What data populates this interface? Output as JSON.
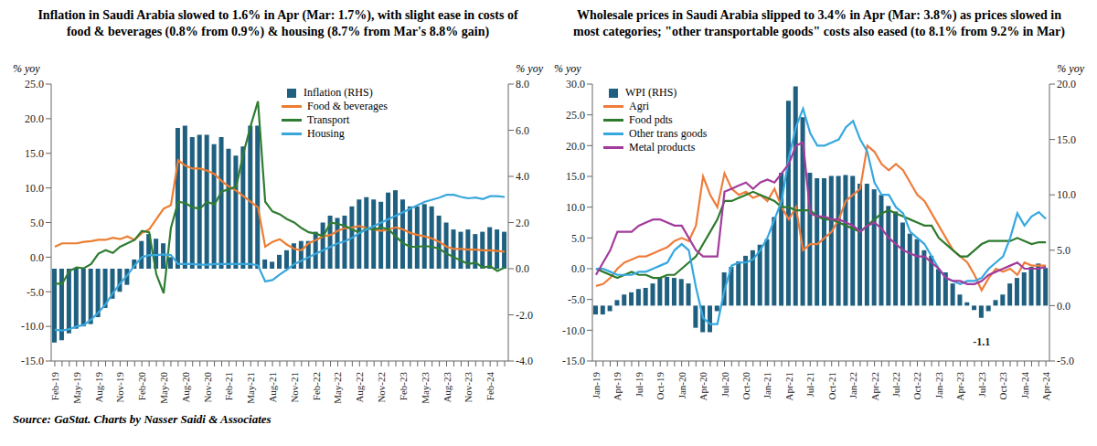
{
  "chart_data": [
    {
      "type": "line",
      "title": "Inflation in Saudi Arabia slowed to 1.6% in Apr (Mar: 1.7%), with slight ease in costs of food & beverages (0.8% from 0.9%) & housing (8.7% from Mar's 8.8% gain)",
      "y_label": "% yoy",
      "y2_label": "% yoy",
      "categories": [
        "Feb-19",
        null,
        null,
        "May-19",
        null,
        null,
        "Aug-19",
        null,
        null,
        "Nov-19",
        null,
        null,
        "Feb-20",
        null,
        null,
        "May-20",
        null,
        null,
        "Aug-20",
        null,
        null,
        "Nov-20",
        null,
        null,
        "Feb-21",
        null,
        null,
        "May-21",
        null,
        null,
        "Aug-21",
        null,
        null,
        "Nov-21",
        null,
        null,
        "Feb-22",
        null,
        null,
        "May-22",
        null,
        null,
        "Aug-22",
        null,
        null,
        "Nov-22",
        null,
        null,
        "Feb-23",
        null,
        null,
        "May-23",
        null,
        null,
        "Aug-23",
        null,
        null,
        "Nov-23",
        null,
        null,
        "Feb-24",
        null,
        null
      ],
      "series": [
        {
          "name": "Inflation (RHS)",
          "type": "bar",
          "axis": "y2",
          "color": "#1f5f80",
          "values": [
            -3.2,
            -3.1,
            -2.8,
            -2.6,
            -2.5,
            -2.4,
            -2.1,
            -1.7,
            -1.3,
            -1.0,
            -0.7,
            0.4,
            1.2,
            1.5,
            1.3,
            1.1,
            0.5,
            6.1,
            6.2,
            5.7,
            5.8,
            5.8,
            5.4,
            5.7,
            5.2,
            4.9,
            5.3,
            6.2,
            6.2,
            0.4,
            0.3,
            0.6,
            0.8,
            1.1,
            1.2,
            1.2,
            1.6,
            2.0,
            2.3,
            2.2,
            2.3,
            2.7,
            3.0,
            3.1,
            3.0,
            2.9,
            3.3,
            3.4,
            3.0,
            2.7,
            2.7,
            2.8,
            2.7,
            2.3,
            2.0,
            1.7,
            1.6,
            1.7,
            1.5,
            1.6,
            1.8,
            1.7,
            1.6
          ]
        },
        {
          "name": "Food & beverages",
          "type": "line",
          "color": "#ed7d31",
          "values": [
            1.5,
            2.0,
            2.0,
            2.0,
            2.2,
            2.3,
            2.5,
            2.5,
            2.8,
            2.6,
            3.0,
            2.5,
            3.5,
            4.0,
            5.5,
            7.0,
            7.5,
            14.0,
            13.2,
            12.8,
            12.8,
            12.5,
            12.0,
            11.0,
            10.2,
            9.6,
            8.8,
            8.0,
            7.2,
            1.5,
            2.2,
            2.6,
            1.8,
            1.2,
            1.0,
            2.0,
            2.5,
            3.0,
            3.2,
            3.8,
            4.2,
            4.3,
            4.5,
            4.2,
            4.0,
            3.8,
            4.0,
            4.3,
            4.0,
            3.5,
            3.2,
            3.0,
            2.7,
            2.2,
            1.5,
            1.2,
            1.2,
            1.1,
            1.1,
            1.0,
            1.0,
            0.9,
            0.8
          ]
        },
        {
          "name": "Transport",
          "type": "line",
          "color": "#2f7d32",
          "values": [
            -3.8,
            -3.9,
            -2.0,
            -1.5,
            -1.6,
            -1.0,
            0.5,
            1.0,
            0.6,
            1.5,
            2.0,
            2.5,
            3.8,
            3.6,
            -2.5,
            -5.2,
            4.2,
            8.0,
            7.8,
            7.2,
            7.0,
            8.0,
            7.6,
            9.5,
            9.8,
            10.2,
            15.0,
            19.0,
            22.5,
            8.0,
            6.6,
            6.2,
            5.5,
            5.0,
            4.2,
            3.6,
            3.4,
            3.0,
            5.0,
            4.8,
            4.5,
            4.0,
            3.5,
            4.2,
            4.0,
            4.3,
            4.0,
            3.0,
            2.0,
            1.5,
            1.5,
            1.6,
            1.5,
            1.2,
            0.5,
            0.0,
            -0.5,
            -1.0,
            -0.8,
            -1.5,
            -1.3,
            -2.0,
            -1.5
          ]
        },
        {
          "name": "Housing",
          "type": "line",
          "color": "#3aa7dc",
          "values": [
            -10.5,
            -10.6,
            -10.4,
            -10.0,
            -9.8,
            -9.0,
            -8.0,
            -6.8,
            -5.2,
            -3.8,
            -2.6,
            -1.2,
            0.0,
            0.3,
            0.3,
            0.4,
            0.3,
            -1.0,
            -1.0,
            -1.0,
            -1.1,
            -1.1,
            -1.0,
            -1.0,
            -1.0,
            -1.0,
            -1.0,
            -1.0,
            -1.2,
            -3.5,
            -3.3,
            -2.5,
            -1.8,
            -1.0,
            -0.5,
            0.0,
            0.5,
            1.0,
            1.5,
            2.0,
            2.3,
            2.8,
            3.5,
            4.0,
            4.5,
            5.0,
            5.5,
            6.0,
            6.5,
            7.0,
            7.5,
            8.0,
            8.3,
            8.6,
            9.0,
            9.0,
            8.7,
            8.5,
            8.6,
            8.4,
            8.8,
            8.8,
            8.7
          ]
        }
      ],
      "ylim": [
        -15,
        25
      ],
      "yticks": [
        {
          "value": -15,
          "label": "-15.0"
        },
        {
          "value": -10,
          "label": "-10.0"
        },
        {
          "value": -5,
          "label": "-5.0"
        },
        {
          "value": 0,
          "label": "0.0"
        },
        {
          "value": 5,
          "label": "5.0"
        },
        {
          "value": 10,
          "label": "10.0"
        },
        {
          "value": 15,
          "label": "15.0"
        },
        {
          "value": 20,
          "label": "20.0"
        },
        {
          "value": 25,
          "label": "25.0"
        }
      ],
      "y2lim": [
        -4,
        8
      ],
      "y2ticks": [
        {
          "value": -4,
          "label": "-4.0"
        },
        {
          "value": -2,
          "label": "-2.0"
        },
        {
          "value": 0,
          "label": "0.0"
        },
        {
          "value": 2,
          "label": "2.0"
        },
        {
          "value": 4,
          "label": "4.0"
        },
        {
          "value": 6,
          "label": "6.0"
        },
        {
          "value": 8,
          "label": "8.0"
        }
      ],
      "grid": false,
      "legend": "upper center"
    },
    {
      "type": "line",
      "title": "Wholesale prices in Saudi Arabia slipped to 3.4% in Apr (Mar: 3.8%) as prices slowed in most categories; \"other transportable goods\" costs also eased (to 8.1% from 9.2% in Mar)",
      "y_label": "% yoy",
      "y2_label": "% yoy",
      "categories": [
        "Jan-19",
        null,
        null,
        "Apr-19",
        null,
        null,
        "Jul-19",
        null,
        null,
        "Oct-19",
        null,
        null,
        "Jan-20",
        null,
        null,
        "Apr-20",
        null,
        null,
        "Jul-20",
        null,
        null,
        "Oct-20",
        null,
        null,
        "Jan-21",
        null,
        null,
        "Apr-21",
        null,
        null,
        "Jul-21",
        null,
        null,
        "Oct-21",
        null,
        null,
        "Jan-22",
        null,
        null,
        "Apr-22",
        null,
        null,
        "Jul-22",
        null,
        null,
        "Oct-22",
        null,
        null,
        "Jan-23",
        null,
        null,
        "Apr-23",
        null,
        null,
        "Jul-23",
        null,
        null,
        "Oct-23",
        null,
        null,
        "Jan-24",
        null,
        null,
        "Apr-24"
      ],
      "series": [
        {
          "name": "WPI (RHS)",
          "type": "bar",
          "axis": "y2",
          "color": "#1f5f80",
          "values": [
            -0.8,
            -0.8,
            -0.5,
            0.5,
            1.0,
            1.2,
            1.5,
            1.6,
            2.0,
            2.5,
            2.6,
            2.5,
            2.4,
            2.0,
            -2.0,
            -2.4,
            -2.4,
            -0.5,
            3.0,
            3.5,
            4.0,
            4.5,
            5.0,
            5.5,
            6.0,
            8.0,
            12.0,
            18.5,
            19.8,
            17.0,
            12.0,
            11.5,
            11.5,
            11.7,
            11.7,
            11.8,
            11.7,
            11.0,
            11.0,
            10.5,
            10.0,
            9.0,
            8.5,
            7.5,
            6.5,
            6.0,
            5.0,
            4.5,
            3.3,
            3.0,
            2.0,
            1.0,
            0.3,
            -0.4,
            -1.1,
            -0.5,
            0.5,
            1.0,
            2.0,
            2.5,
            3.0,
            3.5,
            3.8,
            3.4
          ],
          "value_labels": [
            null,
            null,
            null,
            null,
            null,
            null,
            null,
            null,
            null,
            null,
            null,
            null,
            null,
            null,
            null,
            null,
            null,
            null,
            null,
            null,
            null,
            null,
            null,
            null,
            null,
            null,
            null,
            null,
            null,
            null,
            null,
            null,
            null,
            null,
            null,
            null,
            null,
            null,
            null,
            null,
            null,
            null,
            null,
            null,
            null,
            null,
            null,
            null,
            null,
            null,
            null,
            null,
            null,
            null,
            "-1.1",
            null,
            null,
            null,
            null,
            null,
            null,
            null,
            null,
            null
          ]
        },
        {
          "name": "Agri",
          "type": "line",
          "color": "#ee7d3b",
          "values": [
            -2.8,
            -2.5,
            -1.5,
            0.0,
            1.0,
            1.5,
            2.0,
            2.0,
            2.5,
            3.0,
            3.5,
            4.5,
            5.0,
            4.5,
            7.0,
            15.0,
            12.0,
            10.0,
            15.5,
            13.0,
            12.0,
            12.5,
            11.5,
            12.0,
            11.0,
            13.0,
            10.0,
            8.0,
            10.0,
            3.0,
            4.0,
            4.0,
            5.0,
            6.0,
            8.0,
            11.0,
            12.0,
            13.0,
            20.0,
            19.0,
            17.0,
            16.0,
            17.0,
            16.0,
            14.0,
            12.0,
            11.0,
            9.0,
            7.0,
            5.0,
            3.0,
            2.0,
            1.0,
            -1.0,
            -3.5,
            -1.5,
            0.0,
            -0.5,
            0.0,
            -1.0,
            1.0,
            0.5,
            0.5,
            0.5
          ]
        },
        {
          "name": "Food pdts",
          "type": "line",
          "color": "#2d7a2d",
          "values": [
            0.0,
            -0.5,
            -1.0,
            -1.5,
            -1.0,
            -0.5,
            -1.0,
            -1.0,
            -1.5,
            -1.5,
            -1.0,
            -1.0,
            0.0,
            1.0,
            2.0,
            4.0,
            6.0,
            8.0,
            11.0,
            11.0,
            11.5,
            12.0,
            12.5,
            12.0,
            11.5,
            11.0,
            10.0,
            10.0,
            9.5,
            9.5,
            9.5,
            8.5,
            8.0,
            8.0,
            7.5,
            7.0,
            6.5,
            6.0,
            7.0,
            8.0,
            9.0,
            9.5,
            9.0,
            8.5,
            8.0,
            7.5,
            7.0,
            7.0,
            5.0,
            4.0,
            3.0,
            2.0,
            2.0,
            3.0,
            4.0,
            4.5,
            4.5,
            4.5,
            4.5,
            5.0,
            4.5,
            4.0,
            4.3,
            4.3
          ]
        },
        {
          "name": "Other trans goods",
          "type": "line",
          "color": "#35a8e0",
          "values": [
            0.0,
            0.0,
            -0.5,
            -1.0,
            -1.0,
            -1.0,
            -0.5,
            -0.5,
            0.0,
            0.5,
            1.0,
            3.0,
            4.0,
            3.0,
            -3.0,
            -8.0,
            -9.0,
            -9.0,
            -3.5,
            0.5,
            1.0,
            1.0,
            1.5,
            3.0,
            5.0,
            8.0,
            11.0,
            18.0,
            23.0,
            26.0,
            22.0,
            20.0,
            20.0,
            20.5,
            21.0,
            23.0,
            24.0,
            21.0,
            19.0,
            14.0,
            12.0,
            12.0,
            10.0,
            9.0,
            6.0,
            5.0,
            4.0,
            2.0,
            0.0,
            -1.5,
            -2.0,
            -2.5,
            -2.0,
            -2.0,
            -1.5,
            0.0,
            1.0,
            2.0,
            5.0,
            9.0,
            7.0,
            8.5,
            9.2,
            8.1
          ]
        },
        {
          "name": "Metal products",
          "type": "line",
          "color": "#a23b9c",
          "values": [
            -1.0,
            1.0,
            3.0,
            6.0,
            6.0,
            6.0,
            7.0,
            7.5,
            8.0,
            8.0,
            7.5,
            7.0,
            7.0,
            5.0,
            3.0,
            2.0,
            2.0,
            2.0,
            12.5,
            13.0,
            13.5,
            14.0,
            13.0,
            14.0,
            14.5,
            14.0,
            15.5,
            17.0,
            20.0,
            20.5,
            9.0,
            8.5,
            8.5,
            8.0,
            8.0,
            7.5,
            7.0,
            6.0,
            7.0,
            7.5,
            6.5,
            5.0,
            4.0,
            3.0,
            2.5,
            2.0,
            2.0,
            1.0,
            0.0,
            -1.5,
            -2.0,
            -2.0,
            -2.5,
            -2.5,
            -2.0,
            -1.0,
            -0.5,
            0.0,
            0.5,
            1.0,
            0.0,
            0.0,
            0.0,
            0.3
          ]
        }
      ],
      "ylim": [
        -15,
        30
      ],
      "yticks": [
        {
          "value": -15,
          "label": "-15.0"
        },
        {
          "value": -10,
          "label": "-10.0"
        },
        {
          "value": -5,
          "label": "-5.0"
        },
        {
          "value": 0,
          "label": "0.0"
        },
        {
          "value": 5,
          "label": "5.0"
        },
        {
          "value": 10,
          "label": "10.0"
        },
        {
          "value": 15,
          "label": "15.0"
        },
        {
          "value": 20,
          "label": "20.0"
        },
        {
          "value": 25,
          "label": "25.0"
        },
        {
          "value": 30,
          "label": "30.0"
        }
      ],
      "y2lim": [
        -5,
        20
      ],
      "y2ticks": [
        {
          "value": -5,
          "label": "-5.0"
        },
        {
          "value": 0,
          "label": "0.0"
        },
        {
          "value": 5,
          "label": "5.0"
        },
        {
          "value": 10,
          "label": "10.0"
        },
        {
          "value": 15,
          "label": "15.0"
        },
        {
          "value": 20,
          "label": "20.0"
        }
      ],
      "grid": false,
      "legend": "upper left"
    }
  ],
  "source": "Source: GaStat. Charts by Nasser Saidi & Associates"
}
